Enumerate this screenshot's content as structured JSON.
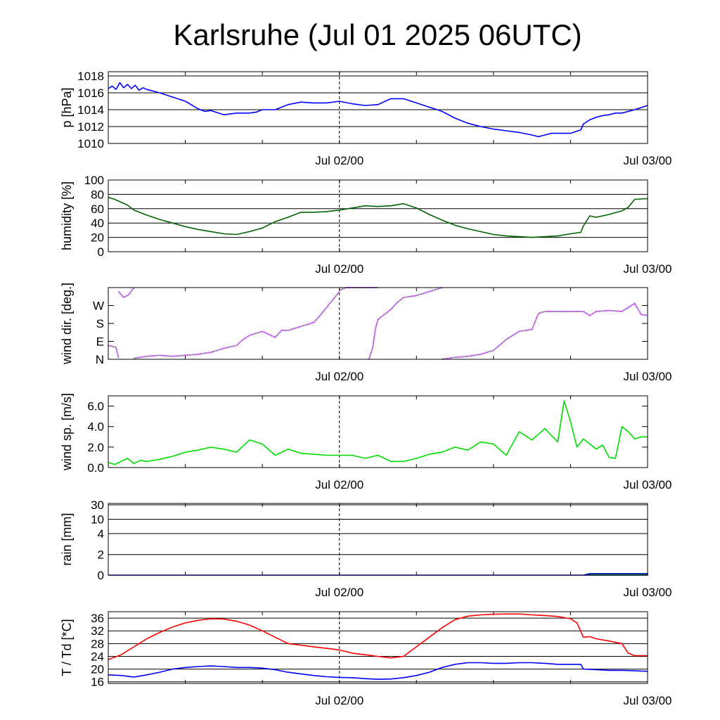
{
  "title": "Karlsruhe (Jul 01 2025 06UTC)",
  "chart_data": [
    {
      "type": "line",
      "id": "pressure",
      "ylabel": "p [hPa]",
      "ylim": [
        1010,
        1018.5
      ],
      "yticks": [
        1010,
        1012,
        1014,
        1016,
        1018
      ],
      "yticklabels": [
        "1010",
        "1012",
        "1014",
        "1016",
        "1018"
      ],
      "grid": true,
      "xlim": [
        0,
        42
      ],
      "xticks": [
        18,
        42
      ],
      "xticklabels": [
        "Jul 02/00",
        "Jul 03/00"
      ],
      "marker_x": 18,
      "series": [
        {
          "color": "#0000ff",
          "x": [
            0,
            0.3,
            0.6,
            0.9,
            1.2,
            1.5,
            1.8,
            2.1,
            2.4,
            2.7,
            3.0,
            3.5,
            4,
            5,
            6,
            7,
            7.5,
            8,
            9,
            10,
            11,
            11.5,
            12,
            12.5,
            13,
            14,
            15,
            16,
            17,
            18,
            19,
            20,
            21,
            22,
            23,
            24,
            25,
            26,
            27,
            28,
            29,
            30,
            31,
            32,
            33,
            33.5,
            34,
            34.5,
            35,
            36,
            36.8,
            37,
            37.5,
            38,
            38.5,
            39,
            39.5,
            40,
            41,
            42
          ],
          "y": [
            1016.5,
            1016.8,
            1016.4,
            1017.2,
            1016.6,
            1017.0,
            1016.5,
            1016.9,
            1016.3,
            1016.6,
            1016.4,
            1016.2,
            1016.0,
            1015.5,
            1015.0,
            1014.1,
            1013.8,
            1013.9,
            1013.4,
            1013.6,
            1013.6,
            1013.7,
            1014.0,
            1014.0,
            1014.0,
            1014.6,
            1014.9,
            1014.8,
            1014.8,
            1015.0,
            1014.7,
            1014.5,
            1014.6,
            1015.3,
            1015.3,
            1014.8,
            1014.3,
            1013.8,
            1013.0,
            1012.4,
            1012.0,
            1011.7,
            1011.5,
            1011.3,
            1011.0,
            1010.8,
            1011.0,
            1011.2,
            1011.2,
            1011.2,
            1011.6,
            1012.3,
            1012.8,
            1013.1,
            1013.3,
            1013.4,
            1013.6,
            1013.6,
            1014.0,
            1014.5
          ]
        }
      ]
    },
    {
      "type": "line",
      "id": "humidity",
      "ylabel": "humidity [%]",
      "ylim": [
        0,
        100
      ],
      "yticks": [
        0,
        20,
        40,
        60,
        80,
        100
      ],
      "yticklabels": [
        "0",
        "20",
        "40",
        "60",
        "80",
        "100"
      ],
      "grid": true,
      "xlim": [
        0,
        42
      ],
      "xticks": [
        18,
        42
      ],
      "xticklabels": [
        "Jul 02/00",
        "Jul 03/00"
      ],
      "marker_x": 18,
      "series": [
        {
          "color": "#006400",
          "x": [
            0,
            0.5,
            1,
            1.5,
            2,
            3,
            4,
            5,
            6,
            7,
            8,
            9,
            10,
            11,
            12,
            13,
            14,
            15,
            16,
            17,
            18,
            19,
            20,
            21,
            22,
            23,
            24,
            25,
            26,
            27,
            28,
            29,
            30,
            31,
            32,
            33,
            34,
            35,
            36,
            36.8,
            37,
            37.5,
            38,
            39,
            40,
            40.5,
            41,
            42
          ],
          "y": [
            76,
            73,
            69,
            65,
            58,
            51,
            45,
            40,
            35,
            31,
            28,
            25,
            24,
            28,
            33,
            42,
            48,
            55,
            55,
            56,
            58,
            61,
            64,
            63,
            64,
            67,
            61,
            52,
            44,
            37,
            32,
            28,
            24,
            22,
            21,
            20,
            21,
            22,
            25,
            27,
            36,
            50,
            48,
            52,
            57,
            62,
            73,
            74
          ]
        }
      ]
    },
    {
      "type": "scatter",
      "id": "wind-direction",
      "ylabel": "wind dir. [deg.]",
      "ylim": [
        0,
        360
      ],
      "yticks": [
        0,
        90,
        180,
        270
      ],
      "yticklabels": [
        "N",
        "E",
        "S",
        "W"
      ],
      "grid": false,
      "xlim": [
        0,
        42
      ],
      "xticks": [
        18,
        42
      ],
      "xticklabels": [
        "Jul 02/00",
        "Jul 03/00"
      ],
      "marker_x": 18,
      "series": [
        {
          "color": "#9932cc",
          "segments": [
            {
              "x": [
                0,
                0.3,
                0.6,
                0.8
              ],
              "y": [
                70,
                65,
                60,
                5
              ]
            },
            {
              "x": [
                0.8,
                1.2,
                1.6,
                2.0
              ],
              "y": [
                340,
                310,
                325,
                360
              ]
            },
            {
              "x": [
                2.0,
                2.5,
                3,
                4,
                5,
                6,
                7,
                8,
                9,
                10,
                10.5,
                11,
                12,
                13,
                13.5,
                14,
                15,
                16,
                16.5,
                17,
                17.5,
                18
              ],
              "y": [
                5,
                10,
                15,
                20,
                15,
                20,
                25,
                35,
                55,
                70,
                100,
                120,
                140,
                110,
                145,
                145,
                165,
                185,
                220,
                260,
                300,
                340
              ]
            },
            {
              "x": [
                18,
                18.5,
                19,
                20,
                21
              ],
              "y": [
                345,
                360,
                360,
                360,
                360
              ]
            },
            {
              "x": [
                20.3,
                20.6,
                20.8,
                21
              ],
              "y": [
                0,
                60,
                150,
                200
              ]
            },
            {
              "x": [
                21,
                21.5,
                22,
                22.5,
                23,
                24,
                25,
                26
              ],
              "y": [
                200,
                225,
                250,
                285,
                310,
                320,
                340,
                360
              ]
            },
            {
              "x": [
                26,
                27,
                28,
                29,
                30,
                31,
                32,
                33,
                33.5,
                34,
                35,
                36,
                37,
                37.5,
                38,
                39,
                40,
                41,
                41.5,
                42
              ],
              "y": [
                0,
                10,
                15,
                25,
                45,
                100,
                140,
                150,
                230,
                240,
                240,
                240,
                240,
                220,
                240,
                245,
                240,
                280,
                225,
                220
              ]
            }
          ]
        }
      ]
    },
    {
      "type": "line",
      "id": "wind-speed",
      "ylabel": "wind sp. [m/s]",
      "ylim": [
        0,
        7
      ],
      "yticks": [
        0,
        2,
        4,
        6
      ],
      "yticklabels": [
        "0.0",
        "2.0",
        "4.0",
        "6.0"
      ],
      "grid": false,
      "xlim": [
        0,
        42
      ],
      "xticks": [
        18,
        42
      ],
      "xticklabels": [
        "Jul 02/00",
        "Jul 03/00"
      ],
      "marker_x": 18,
      "series": [
        {
          "color": "#00dd00",
          "x": [
            0,
            0.5,
            1,
            1.5,
            2,
            2.5,
            3,
            4,
            5,
            6,
            7,
            8,
            9,
            10,
            11,
            12,
            13,
            14,
            15,
            16,
            17,
            18,
            19,
            20,
            21,
            22,
            23,
            24,
            25,
            26,
            27,
            28,
            29,
            30,
            31,
            32,
            33,
            34,
            35,
            35.5,
            36,
            36.5,
            37,
            37.5,
            38,
            38.5,
            39,
            39.5,
            40,
            40.5,
            41,
            41.5,
            42
          ],
          "y": [
            0.5,
            0.3,
            0.6,
            0.9,
            0.4,
            0.7,
            0.6,
            0.8,
            1.1,
            1.5,
            1.7,
            2.0,
            1.8,
            1.5,
            2.7,
            2.3,
            1.2,
            1.8,
            1.4,
            1.3,
            1.2,
            1.2,
            1.2,
            0.9,
            1.2,
            0.6,
            0.6,
            0.9,
            1.3,
            1.5,
            2.0,
            1.7,
            2.5,
            2.3,
            1.2,
            3.5,
            2.7,
            3.8,
            2.5,
            6.5,
            4.5,
            2.0,
            2.8,
            2.3,
            1.8,
            2.2,
            1.0,
            0.9,
            4.0,
            3.5,
            2.8,
            3.0,
            3.0
          ]
        }
      ]
    },
    {
      "type": "area",
      "id": "rain",
      "ylabel": "rain [mm]",
      "scale": "nonlinear",
      "yticks": [
        0,
        2,
        4,
        10,
        30
      ],
      "yticklabels": [
        "0",
        "2",
        "4",
        "10",
        "30"
      ],
      "grid": true,
      "xlim": [
        0,
        42
      ],
      "xticks": [
        18,
        42
      ],
      "xticklabels": [
        "Jul 02/00",
        "Jul 03/00"
      ],
      "marker_x": 18,
      "series": [
        {
          "color": "#00cc00",
          "x": [
            0,
            37,
            37.5,
            42
          ],
          "y": [
            0,
            0,
            0.15,
            0.15
          ]
        }
      ]
    },
    {
      "type": "line",
      "id": "temperature",
      "ylabel": "T / Td [*C]",
      "ylim": [
        15.5,
        38
      ],
      "yticks": [
        16,
        20,
        24,
        28,
        32,
        36
      ],
      "yticklabels": [
        "16",
        "20",
        "24",
        "28",
        "32",
        "36"
      ],
      "grid": true,
      "xlim": [
        0,
        42
      ],
      "xticks": [
        18,
        42
      ],
      "xticklabels": [
        "Jul 02/00",
        "Jul 03/00"
      ],
      "marker_x": 18,
      "series": [
        {
          "color": "#ff0000",
          "x": [
            0,
            1,
            2,
            3,
            4,
            5,
            6,
            7,
            8,
            9,
            10,
            11,
            12,
            13,
            14,
            15,
            16,
            17,
            18,
            19,
            20,
            21,
            22,
            23,
            24,
            25,
            26,
            27,
            28,
            29,
            30,
            31,
            32,
            33,
            34,
            35,
            36,
            36.5,
            37,
            37.5,
            38,
            39,
            40,
            40.5,
            41,
            42
          ],
          "y": [
            23,
            24.5,
            27,
            29.5,
            31.5,
            33.2,
            34.5,
            35.3,
            35.8,
            35.7,
            35,
            33.8,
            32,
            30,
            28,
            27.5,
            27,
            26.5,
            26,
            25,
            24.5,
            24,
            23.5,
            24,
            27,
            30,
            33,
            35.5,
            36.6,
            37,
            37.2,
            37.3,
            37.3,
            37,
            36.8,
            36.5,
            35.8,
            34.5,
            30,
            30.2,
            29.5,
            28.8,
            28,
            25,
            24.2,
            24.2
          ]
        },
        {
          "color": "#0000ff",
          "x": [
            0,
            1,
            2,
            3,
            4,
            5,
            6,
            7,
            8,
            9,
            10,
            11,
            12,
            13,
            14,
            15,
            16,
            17,
            18,
            19,
            20,
            21,
            22,
            23,
            24,
            25,
            26,
            27,
            28,
            29,
            30,
            31,
            32,
            33,
            34,
            35,
            36,
            36.8,
            37,
            38,
            39,
            40,
            41,
            42
          ],
          "y": [
            18.2,
            18,
            17.5,
            18.2,
            19,
            20,
            20.5,
            20.8,
            21,
            20.8,
            20.5,
            20.5,
            20.3,
            19.8,
            19,
            18.5,
            18,
            17.6,
            17.4,
            17.3,
            17,
            16.8,
            16.9,
            17.3,
            18,
            19,
            20.5,
            21.5,
            22,
            22,
            21.8,
            21.8,
            22,
            22,
            21.8,
            21.5,
            21.5,
            21.5,
            20,
            19.8,
            19.6,
            19.6,
            19.5,
            19.3
          ]
        }
      ]
    }
  ]
}
